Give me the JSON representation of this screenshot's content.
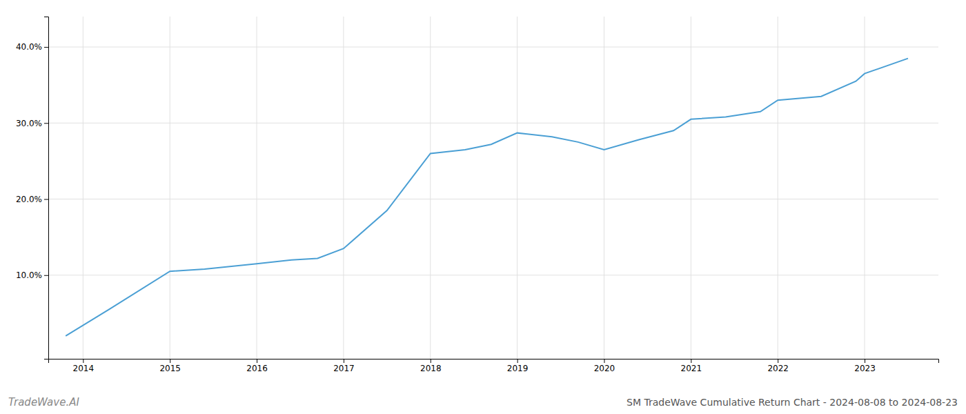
{
  "chart_data": {
    "type": "line",
    "title": "SM TradeWave Cumulative Return Chart - 2024-08-08 to 2024-08-23",
    "annotations": [
      "TradeWave.AI"
    ],
    "x": [
      2013.8,
      2014.3,
      2015.0,
      2015.4,
      2016.0,
      2016.4,
      2016.7,
      2017.0,
      2017.5,
      2018.0,
      2018.4,
      2018.7,
      2019.0,
      2019.4,
      2019.7,
      2020.0,
      2020.4,
      2020.8,
      2021.0,
      2021.4,
      2021.8,
      2022.0,
      2022.5,
      2022.9,
      2023.0,
      2023.5
    ],
    "values": [
      2.0,
      5.5,
      10.5,
      10.8,
      11.5,
      12.0,
      12.2,
      13.5,
      18.5,
      26.0,
      26.5,
      27.2,
      28.7,
      28.2,
      27.5,
      26.5,
      27.8,
      29.0,
      30.5,
      30.8,
      31.5,
      33.0,
      33.5,
      35.5,
      36.5,
      38.5
    ],
    "color": "#4a9fd4",
    "xlim": [
      2013.6,
      2023.85
    ],
    "xticks": [
      2014,
      2015,
      2016,
      2017,
      2018,
      2019,
      2020,
      2021,
      2022,
      2023
    ],
    "ylim": [
      -1,
      44
    ],
    "yticks": [
      {
        "value": 10.0,
        "label": "10.0%"
      },
      {
        "value": 20.0,
        "label": "20.0%"
      },
      {
        "value": 30.0,
        "label": "30.0%"
      },
      {
        "value": 40.0,
        "label": "40.0%"
      }
    ],
    "grid": true
  }
}
